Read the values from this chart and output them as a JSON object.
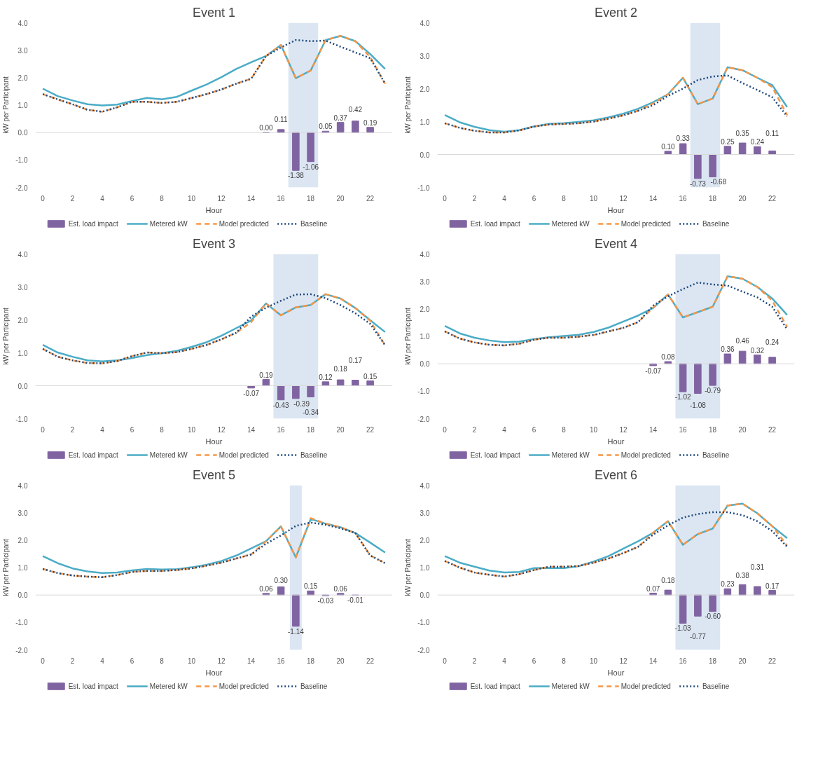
{
  "chart_data": [
    {
      "type": "bar",
      "title": "Event 1",
      "xlabel": "Hour",
      "ylabel": "kW per Participant",
      "x": [
        0,
        1,
        2,
        3,
        4,
        5,
        6,
        7,
        8,
        9,
        10,
        11,
        12,
        13,
        14,
        15,
        16,
        17,
        18,
        19,
        20,
        21,
        22,
        23
      ],
      "xlim": [
        -0.5,
        23.5
      ],
      "xticks": [
        0,
        2,
        4,
        6,
        8,
        10,
        12,
        14,
        16,
        18,
        20,
        22
      ],
      "ylim": [
        -2,
        4
      ],
      "yticks": [
        {
          "value": -2,
          "label": "-2.0"
        },
        {
          "value": -1,
          "label": "-1.0"
        },
        {
          "value": 0,
          "label": "0.0"
        },
        {
          "value": 1,
          "label": "1.0"
        },
        {
          "value": 2,
          "label": "2.0"
        },
        {
          "value": 3,
          "label": "3.0"
        },
        {
          "value": 4,
          "label": "4.0"
        }
      ],
      "legend": "bottom",
      "bands": [
        {
          "axis": "x",
          "from": 16.5,
          "to": 18.5,
          "color": "#dce6f2"
        }
      ],
      "ref_lines": [
        {
          "axis": "y",
          "value": 0,
          "color": "#d9d9d9"
        }
      ],
      "series": [
        {
          "name": "Est. load impact",
          "color": "#8064a2",
          "values": [
            null,
            null,
            null,
            null,
            null,
            null,
            null,
            null,
            null,
            null,
            null,
            null,
            null,
            null,
            null,
            0.0,
            0.11,
            -1.38,
            -1.06,
            0.05,
            0.37,
            0.42,
            0.19,
            null
          ],
          "value_labels": [
            null,
            null,
            null,
            null,
            null,
            null,
            null,
            null,
            null,
            null,
            null,
            null,
            null,
            null,
            null,
            "0.00",
            "0.11",
            "-1.38",
            "-1.06",
            "0.05",
            "0.37",
            "0.42",
            "0.19",
            null
          ]
        },
        {
          "name": "Metered kW",
          "type": "line",
          "line_style": "solid",
          "color": "#4bacc6",
          "values": [
            1.6,
            1.33,
            1.17,
            1.03,
            0.99,
            1.02,
            1.15,
            1.26,
            1.21,
            1.3,
            1.53,
            1.75,
            2.02,
            2.32,
            2.56,
            2.79,
            3.19,
            1.98,
            2.26,
            3.37,
            3.52,
            3.33,
            2.86,
            2.32
          ]
        },
        {
          "name": "Model predicted",
          "type": "line",
          "line_style": "dashed",
          "color": "#f79646",
          "values": [
            1.4,
            1.21,
            1.03,
            0.83,
            0.76,
            0.92,
            1.12,
            1.12,
            1.08,
            1.12,
            1.26,
            1.4,
            1.57,
            1.78,
            1.96,
            2.79,
            3.19,
            1.98,
            2.26,
            3.37,
            3.52,
            3.33,
            2.75,
            1.78
          ]
        },
        {
          "name": "Baseline",
          "type": "line",
          "line_style": "dotted",
          "color": "#1f497d",
          "values": [
            1.4,
            1.21,
            1.03,
            0.83,
            0.76,
            0.92,
            1.12,
            1.12,
            1.08,
            1.12,
            1.26,
            1.4,
            1.57,
            1.78,
            1.96,
            2.79,
            3.1,
            3.37,
            3.33,
            3.35,
            3.13,
            2.92,
            2.71,
            1.78
          ]
        }
      ]
    },
    {
      "type": "bar",
      "title": "Event 2",
      "xlabel": "Hour",
      "ylabel": "kW per Participant",
      "x": [
        0,
        1,
        2,
        3,
        4,
        5,
        6,
        7,
        8,
        9,
        10,
        11,
        12,
        13,
        14,
        15,
        16,
        17,
        18,
        19,
        20,
        21,
        22,
        23
      ],
      "xlim": [
        -0.5,
        23.5
      ],
      "xticks": [
        0,
        2,
        4,
        6,
        8,
        10,
        12,
        14,
        16,
        18,
        20,
        22
      ],
      "ylim": [
        -1,
        4
      ],
      "yticks": [
        {
          "value": -1,
          "label": "-1.0"
        },
        {
          "value": 0,
          "label": "0.0"
        },
        {
          "value": 1,
          "label": "1.0"
        },
        {
          "value": 2,
          "label": "2.0"
        },
        {
          "value": 3,
          "label": "3.0"
        },
        {
          "value": 4,
          "label": "4.0"
        }
      ],
      "legend": "bottom",
      "bands": [
        {
          "axis": "x",
          "from": 16.5,
          "to": 18.5,
          "color": "#dce6f2"
        }
      ],
      "ref_lines": [
        {
          "axis": "y",
          "value": 0,
          "color": "#d9d9d9"
        }
      ],
      "series": [
        {
          "name": "Est. load impact",
          "color": "#8064a2",
          "values": [
            null,
            null,
            null,
            null,
            null,
            null,
            null,
            null,
            null,
            null,
            null,
            null,
            null,
            null,
            null,
            0.1,
            0.33,
            -0.73,
            -0.68,
            0.25,
            0.35,
            0.24,
            0.11,
            null
          ],
          "value_labels": [
            null,
            null,
            null,
            null,
            null,
            null,
            null,
            null,
            null,
            null,
            null,
            null,
            null,
            null,
            null,
            "0.10",
            "0.33",
            "-0.73",
            "-0.68",
            "0.25",
            "0.35",
            "0.24",
            "0.11",
            null
          ]
        },
        {
          "name": "Metered kW",
          "type": "line",
          "line_style": "solid",
          "color": "#4bacc6",
          "values": [
            1.2,
            0.98,
            0.84,
            0.74,
            0.69,
            0.74,
            0.85,
            0.93,
            0.95,
            0.99,
            1.04,
            1.13,
            1.24,
            1.39,
            1.59,
            1.83,
            2.33,
            1.53,
            1.7,
            2.65,
            2.56,
            2.33,
            2.11,
            1.44
          ]
        },
        {
          "name": "Model predicted",
          "type": "line",
          "line_style": "dashed",
          "color": "#f79646",
          "values": [
            0.95,
            0.81,
            0.72,
            0.67,
            0.67,
            0.73,
            0.85,
            0.91,
            0.93,
            0.95,
            1.0,
            1.09,
            1.19,
            1.33,
            1.55,
            1.83,
            2.33,
            1.53,
            1.7,
            2.65,
            2.56,
            2.33,
            2.05,
            1.2
          ]
        },
        {
          "name": "Baseline",
          "type": "line",
          "line_style": "dotted",
          "color": "#1f497d",
          "values": [
            0.95,
            0.81,
            0.72,
            0.67,
            0.67,
            0.73,
            0.85,
            0.91,
            0.93,
            0.95,
            1.0,
            1.09,
            1.19,
            1.33,
            1.5,
            1.78,
            2.0,
            2.26,
            2.37,
            2.4,
            2.17,
            1.96,
            1.74,
            1.16
          ]
        }
      ]
    },
    {
      "type": "bar",
      "title": "Event 3",
      "xlabel": "Hour",
      "ylabel": "kW per Participant",
      "x": [
        0,
        1,
        2,
        3,
        4,
        5,
        6,
        7,
        8,
        9,
        10,
        11,
        12,
        13,
        14,
        15,
        16,
        17,
        18,
        19,
        20,
        21,
        22,
        23
      ],
      "xlim": [
        -0.5,
        23.5
      ],
      "xticks": [
        0,
        2,
        4,
        6,
        8,
        10,
        12,
        14,
        16,
        18,
        20,
        22
      ],
      "ylim": [
        -1,
        4
      ],
      "yticks": [
        {
          "value": -1,
          "label": "-1.0"
        },
        {
          "value": 0,
          "label": "0.0"
        },
        {
          "value": 1,
          "label": "1.0"
        },
        {
          "value": 2,
          "label": "2.0"
        },
        {
          "value": 3,
          "label": "3.0"
        },
        {
          "value": 4,
          "label": "4.0"
        }
      ],
      "legend": "bottom",
      "bands": [
        {
          "axis": "x",
          "from": 15.5,
          "to": 18.5,
          "color": "#dce6f2"
        }
      ],
      "ref_lines": [
        {
          "axis": "y",
          "value": 0,
          "color": "#d9d9d9"
        }
      ],
      "series": [
        {
          "name": "Est. load impact",
          "color": "#8064a2",
          "values": [
            null,
            null,
            null,
            null,
            null,
            null,
            null,
            null,
            null,
            null,
            null,
            null,
            null,
            null,
            -0.07,
            0.19,
            -0.43,
            -0.39,
            -0.34,
            0.12,
            0.18,
            0.17,
            0.15,
            null
          ],
          "value_labels": [
            null,
            null,
            null,
            null,
            null,
            null,
            null,
            null,
            null,
            null,
            null,
            null,
            null,
            null,
            "-0.07",
            "0.19",
            "-0.43",
            "-0.39",
            "-0.34",
            "0.12",
            "0.18",
            "0.17",
            "0.15",
            null
          ]
        },
        {
          "name": "Metered kW",
          "type": "line",
          "line_style": "solid",
          "color": "#4bacc6",
          "values": [
            1.24,
            1.01,
            0.88,
            0.77,
            0.74,
            0.77,
            0.84,
            0.93,
            0.99,
            1.06,
            1.18,
            1.32,
            1.52,
            1.75,
            1.98,
            2.5,
            2.14,
            2.38,
            2.45,
            2.78,
            2.65,
            2.36,
            1.99,
            1.63
          ]
        },
        {
          "name": "Model predicted",
          "type": "line",
          "line_style": "dashed",
          "color": "#f79646",
          "values": [
            1.12,
            0.88,
            0.77,
            0.69,
            0.68,
            0.75,
            0.9,
            1.01,
            0.99,
            1.02,
            1.12,
            1.24,
            1.41,
            1.61,
            1.93,
            2.5,
            2.14,
            2.38,
            2.45,
            2.78,
            2.65,
            2.36,
            1.97,
            1.23
          ]
        },
        {
          "name": "Baseline",
          "type": "line",
          "line_style": "dotted",
          "color": "#1f497d",
          "values": [
            1.12,
            0.88,
            0.77,
            0.69,
            0.68,
            0.75,
            0.9,
            1.01,
            0.99,
            1.02,
            1.12,
            1.24,
            1.41,
            1.61,
            2.1,
            2.37,
            2.58,
            2.77,
            2.78,
            2.66,
            2.45,
            2.2,
            1.88,
            1.23
          ]
        }
      ]
    },
    {
      "type": "bar",
      "title": "Event 4",
      "xlabel": "Hour",
      "ylabel": "kW per Participant",
      "x": [
        0,
        1,
        2,
        3,
        4,
        5,
        6,
        7,
        8,
        9,
        10,
        11,
        12,
        13,
        14,
        15,
        16,
        17,
        18,
        19,
        20,
        21,
        22,
        23
      ],
      "xlim": [
        -0.5,
        23.5
      ],
      "xticks": [
        0,
        2,
        4,
        6,
        8,
        10,
        12,
        14,
        16,
        18,
        20,
        22
      ],
      "ylim": [
        -2,
        4
      ],
      "yticks": [
        {
          "value": -2,
          "label": "-2.0"
        },
        {
          "value": -1,
          "label": "-1.0"
        },
        {
          "value": 0,
          "label": "0.0"
        },
        {
          "value": 1,
          "label": "1.0"
        },
        {
          "value": 2,
          "label": "2.0"
        },
        {
          "value": 3,
          "label": "3.0"
        },
        {
          "value": 4,
          "label": "4.0"
        }
      ],
      "legend": "bottom",
      "bands": [
        {
          "axis": "x",
          "from": 15.5,
          "to": 18.5,
          "color": "#dce6f2"
        }
      ],
      "ref_lines": [
        {
          "axis": "y",
          "value": 0,
          "color": "#d9d9d9"
        }
      ],
      "series": [
        {
          "name": "Est. load impact",
          "color": "#8064a2",
          "values": [
            null,
            null,
            null,
            null,
            null,
            null,
            null,
            null,
            null,
            null,
            null,
            null,
            null,
            null,
            -0.07,
            0.08,
            -1.02,
            -1.08,
            -0.79,
            0.36,
            0.46,
            0.32,
            0.24,
            null
          ],
          "value_labels": [
            null,
            null,
            null,
            null,
            null,
            null,
            null,
            null,
            null,
            null,
            null,
            null,
            null,
            null,
            "-0.07",
            "0.08",
            "-1.02",
            "-1.08",
            "-0.79",
            "0.36",
            "0.46",
            "0.32",
            "0.24",
            null
          ]
        },
        {
          "name": "Metered kW",
          "type": "line",
          "line_style": "solid",
          "color": "#4bacc6",
          "values": [
            1.38,
            1.11,
            0.95,
            0.85,
            0.79,
            0.81,
            0.9,
            0.97,
            1.01,
            1.06,
            1.16,
            1.32,
            1.54,
            1.76,
            2.03,
            2.53,
            1.69,
            1.88,
            2.08,
            3.19,
            3.1,
            2.8,
            2.38,
            1.78
          ]
        },
        {
          "name": "Model predicted",
          "type": "line",
          "line_style": "dashed",
          "color": "#f79646",
          "values": [
            1.18,
            0.92,
            0.78,
            0.69,
            0.67,
            0.73,
            0.88,
            0.95,
            0.95,
            0.99,
            1.05,
            1.18,
            1.31,
            1.52,
            2.05,
            2.53,
            1.69,
            1.88,
            2.08,
            3.19,
            3.1,
            2.8,
            2.3,
            1.35
          ]
        },
        {
          "name": "Baseline",
          "type": "line",
          "line_style": "dotted",
          "color": "#1f497d",
          "values": [
            1.18,
            0.92,
            0.78,
            0.69,
            0.67,
            0.73,
            0.88,
            0.95,
            0.95,
            0.99,
            1.05,
            1.18,
            1.31,
            1.52,
            2.12,
            2.46,
            2.72,
            2.96,
            2.89,
            2.85,
            2.63,
            2.42,
            2.08,
            1.26
          ]
        }
      ]
    },
    {
      "type": "bar",
      "title": "Event 5",
      "xlabel": "Hour",
      "ylabel": "kW per Participant",
      "x": [
        0,
        1,
        2,
        3,
        4,
        5,
        6,
        7,
        8,
        9,
        10,
        11,
        12,
        13,
        14,
        15,
        16,
        17,
        18,
        19,
        20,
        21,
        22,
        23
      ],
      "xlim": [
        -0.5,
        23.5
      ],
      "xticks": [
        0,
        2,
        4,
        6,
        8,
        10,
        12,
        14,
        16,
        18,
        20,
        22
      ],
      "ylim": [
        -2,
        4
      ],
      "yticks": [
        {
          "value": -2,
          "label": "-2.0"
        },
        {
          "value": -1,
          "label": "-1.0"
        },
        {
          "value": 0,
          "label": "0.0"
        },
        {
          "value": 1,
          "label": "1.0"
        },
        {
          "value": 2,
          "label": "2.0"
        },
        {
          "value": 3,
          "label": "3.0"
        },
        {
          "value": 4,
          "label": "4.0"
        }
      ],
      "legend": "bottom",
      "bands": [
        {
          "axis": "x",
          "from": 16.6,
          "to": 17.4,
          "color": "#dce6f2"
        }
      ],
      "ref_lines": [
        {
          "axis": "y",
          "value": 0,
          "color": "#d9d9d9"
        }
      ],
      "series": [
        {
          "name": "Est. load impact",
          "color": "#8064a2",
          "values": [
            null,
            null,
            null,
            null,
            null,
            null,
            null,
            null,
            null,
            null,
            null,
            null,
            null,
            null,
            null,
            0.06,
            0.3,
            -1.14,
            0.15,
            -0.03,
            0.06,
            -0.01,
            null,
            null
          ],
          "value_labels": [
            null,
            null,
            null,
            null,
            null,
            null,
            null,
            null,
            null,
            null,
            null,
            null,
            null,
            null,
            null,
            "0.06",
            "0.30",
            "-1.14",
            "0.15",
            "-0.03",
            "0.06",
            "-0.01",
            null,
            null
          ]
        },
        {
          "name": "Metered kW",
          "type": "line",
          "line_style": "solid",
          "color": "#4bacc6",
          "values": [
            1.42,
            1.16,
            0.97,
            0.86,
            0.8,
            0.82,
            0.9,
            0.95,
            0.93,
            0.94,
            1.01,
            1.1,
            1.24,
            1.44,
            1.7,
            1.96,
            2.5,
            1.37,
            2.77,
            2.6,
            2.47,
            2.26,
            1.91,
            1.55
          ]
        },
        {
          "name": "Model predicted",
          "type": "line",
          "line_style": "dashed",
          "color": "#f79646",
          "values": [
            0.95,
            0.8,
            0.71,
            0.67,
            0.65,
            0.73,
            0.84,
            0.88,
            0.88,
            0.91,
            0.97,
            1.07,
            1.18,
            1.33,
            1.48,
            1.96,
            2.5,
            1.37,
            2.8,
            2.6,
            2.47,
            2.26,
            1.44,
            1.16
          ]
        },
        {
          "name": "Baseline",
          "type": "line",
          "line_style": "dotted",
          "color": "#1f497d",
          "values": [
            0.95,
            0.8,
            0.71,
            0.67,
            0.65,
            0.73,
            0.84,
            0.88,
            0.88,
            0.91,
            0.97,
            1.07,
            1.18,
            1.33,
            1.48,
            1.87,
            2.17,
            2.52,
            2.64,
            2.56,
            2.43,
            2.26,
            1.44,
            1.16
          ]
        }
      ]
    },
    {
      "type": "bar",
      "title": "Event 6",
      "xlabel": "Hour",
      "ylabel": "kW per Participant",
      "x": [
        0,
        1,
        2,
        3,
        4,
        5,
        6,
        7,
        8,
        9,
        10,
        11,
        12,
        13,
        14,
        15,
        16,
        17,
        18,
        19,
        20,
        21,
        22,
        23
      ],
      "xlim": [
        -0.5,
        23.5
      ],
      "xticks": [
        0,
        2,
        4,
        6,
        8,
        10,
        12,
        14,
        16,
        18,
        20,
        22
      ],
      "ylim": [
        -2,
        4
      ],
      "yticks": [
        {
          "value": -2,
          "label": "-2.0"
        },
        {
          "value": -1,
          "label": "-1.0"
        },
        {
          "value": 0,
          "label": "0.0"
        },
        {
          "value": 1,
          "label": "1.0"
        },
        {
          "value": 2,
          "label": "2.0"
        },
        {
          "value": 3,
          "label": "3.0"
        },
        {
          "value": 4,
          "label": "4.0"
        }
      ],
      "legend": "bottom",
      "bands": [
        {
          "axis": "x",
          "from": 15.5,
          "to": 18.5,
          "color": "#dce6f2"
        }
      ],
      "ref_lines": [
        {
          "axis": "y",
          "value": 0,
          "color": "#d9d9d9"
        }
      ],
      "series": [
        {
          "name": "Est. load impact",
          "color": "#8064a2",
          "values": [
            null,
            null,
            null,
            null,
            null,
            null,
            null,
            null,
            null,
            null,
            null,
            null,
            null,
            null,
            0.07,
            0.18,
            -1.03,
            -0.77,
            -0.6,
            0.23,
            0.38,
            0.31,
            0.17,
            null
          ],
          "value_labels": [
            null,
            null,
            null,
            null,
            null,
            null,
            null,
            null,
            null,
            null,
            null,
            null,
            null,
            null,
            "0.07",
            "0.18",
            "-1.03",
            "-0.77",
            "-0.60",
            "0.23",
            "0.38",
            "0.31",
            "0.17",
            null
          ]
        },
        {
          "name": "Metered kW",
          "type": "line",
          "line_style": "solid",
          "color": "#4bacc6",
          "values": [
            1.42,
            1.18,
            1.03,
            0.89,
            0.82,
            0.84,
            0.98,
            0.99,
            0.98,
            1.05,
            1.22,
            1.42,
            1.69,
            1.96,
            2.27,
            2.69,
            1.83,
            2.22,
            2.42,
            3.26,
            3.33,
            2.98,
            2.51,
            2.07
          ]
        },
        {
          "name": "Model predicted",
          "type": "line",
          "line_style": "dashed",
          "color": "#f79646",
          "values": [
            1.24,
            1.0,
            0.82,
            0.74,
            0.67,
            0.76,
            0.91,
            1.03,
            1.03,
            1.06,
            1.18,
            1.33,
            1.53,
            1.76,
            2.27,
            2.69,
            1.83,
            2.22,
            2.42,
            3.26,
            3.33,
            2.98,
            2.51,
            1.8
          ]
        },
        {
          "name": "Baseline",
          "type": "line",
          "line_style": "dotted",
          "color": "#1f497d",
          "values": [
            1.24,
            1.0,
            0.82,
            0.74,
            0.67,
            0.76,
            0.91,
            1.03,
            1.03,
            1.06,
            1.18,
            1.33,
            1.53,
            1.76,
            2.2,
            2.54,
            2.82,
            2.95,
            3.02,
            3.02,
            2.91,
            2.69,
            2.33,
            1.76
          ]
        }
      ]
    }
  ]
}
